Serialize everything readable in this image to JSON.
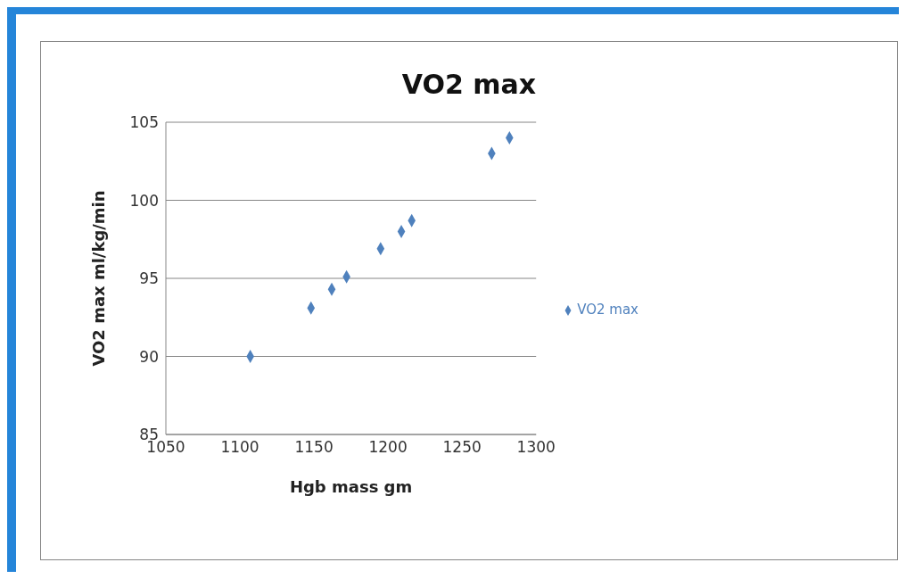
{
  "chart_data": {
    "type": "scatter",
    "title": "VO2 max",
    "xlabel": "Hgb mass gm",
    "ylabel": "VO2 max ml/kg/min",
    "x": [
      1107,
      1148,
      1162,
      1172,
      1195,
      1209,
      1216,
      1270,
      1282
    ],
    "series": [
      {
        "name": "VO2 max",
        "color": "#4f81bd",
        "values": [
          90,
          93.1,
          94.3,
          95.1,
          96.9,
          98,
          98.7,
          103,
          104
        ]
      }
    ],
    "xlim": [
      1050,
      1300
    ],
    "xticks": [
      1050,
      1100,
      1150,
      1200,
      1250,
      1300
    ],
    "ylim": [
      85,
      105
    ],
    "yticks": [
      85,
      90,
      95,
      100,
      105
    ],
    "grid": "y",
    "legend": "right",
    "marker": "diamond"
  }
}
